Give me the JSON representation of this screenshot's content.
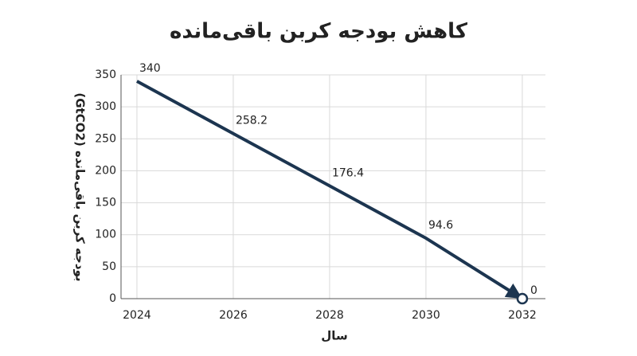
{
  "chart_data": {
    "type": "line",
    "title": "کاهش بودجه کربن باقی‌مانده",
    "x_label": "سال",
    "y_label": "بودجه کربن باقی‌مانده (GtCO2)",
    "x": [
      2024,
      2026,
      2028,
      2030,
      2032
    ],
    "series": [
      {
        "name": "بودجه کربن باقی‌مانده",
        "color": "#1c3550",
        "values": [
          340,
          258.2,
          176.4,
          94.6,
          0
        ]
      }
    ],
    "xlim": [
      2023.67,
      2032.48
    ],
    "xticks": [
      2024,
      2026,
      2028,
      2030,
      2032
    ],
    "ylim": [
      0,
      350
    ],
    "yticks": [
      0,
      50,
      100,
      150,
      200,
      250,
      300,
      350
    ],
    "grid": true
  }
}
